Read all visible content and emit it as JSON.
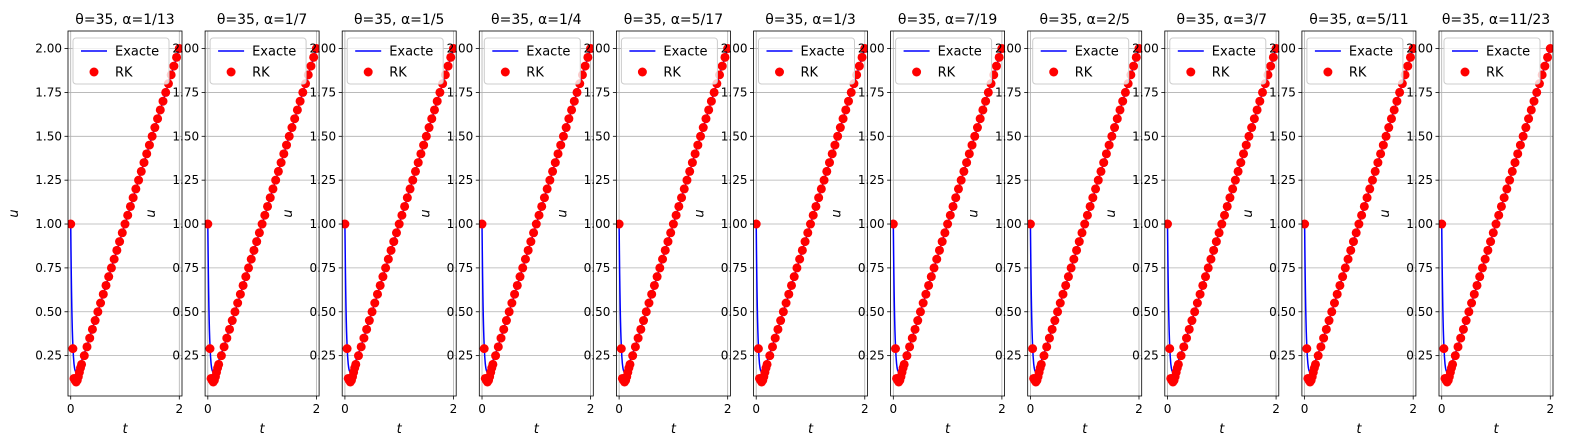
{
  "figure": {
    "colors": {
      "exact": "#0000ff",
      "rk": "#ff0000",
      "grid": "#b0b0b0",
      "legend_border": "#cccccc"
    }
  },
  "chart_data": {
    "type": "line",
    "panels": [
      {
        "title": "θ=35, α=1/13"
      },
      {
        "title": "θ=35, α=1/7"
      },
      {
        "title": "θ=35, α=1/5"
      },
      {
        "title": "θ=35, α=1/4"
      },
      {
        "title": "θ=35, α=5/17"
      },
      {
        "title": "θ=35, α=1/3"
      },
      {
        "title": "θ=35, α=7/19"
      },
      {
        "title": "θ=35, α=2/5"
      },
      {
        "title": "θ=35, α=3/7"
      },
      {
        "title": "θ=35, α=5/11"
      },
      {
        "title": "θ=35, α=11/23"
      }
    ],
    "xlabel": "t",
    "ylabel": "u",
    "xlim": [
      -0.05,
      2.05
    ],
    "ylim": [
      0.02,
      2.1
    ],
    "xticks": [
      0,
      2
    ],
    "yticks": [
      0.25,
      0.5,
      0.75,
      1.0,
      1.25,
      1.5,
      1.75,
      2.0
    ],
    "ytick_labels": [
      "0.25",
      "0.50",
      "0.75",
      "1.00",
      "1.25",
      "1.50",
      "1.75",
      "2.00"
    ],
    "grid": true,
    "legend": {
      "placement": "upper-left",
      "entries": [
        "Exacte",
        "RK"
      ]
    },
    "series": [
      {
        "name": "Exacte",
        "style": "line",
        "x": [
          0,
          0.005,
          0.01,
          0.015,
          0.02,
          0.025,
          0.03,
          0.035,
          0.04,
          0.05,
          0.06,
          0.07,
          0.08,
          0.09,
          0.1,
          0.12,
          0.14,
          0.16,
          0.18,
          0.2,
          0.25,
          0.3,
          0.4,
          0.5,
          0.6,
          0.7,
          0.8,
          0.9,
          1.0,
          1.2,
          1.4,
          1.6,
          1.8,
          2.0
        ],
        "y": [
          1.0,
          0.847,
          0.718,
          0.613,
          0.525,
          0.454,
          0.393,
          0.346,
          0.306,
          0.245,
          0.205,
          0.18,
          0.166,
          0.159,
          0.157,
          0.162,
          0.174,
          0.188,
          0.204,
          0.221,
          0.263,
          0.306,
          0.404,
          0.5,
          0.6,
          0.7,
          0.8,
          0.9,
          1.0,
          1.2,
          1.4,
          1.6,
          1.8,
          2.0
        ]
      },
      {
        "name": "RK",
        "style": "markers",
        "x": [
          0,
          0.04,
          0.06,
          0.08,
          0.1,
          0.12,
          0.14,
          0.16,
          0.18,
          0.2,
          0.25,
          0.3,
          0.35,
          0.4,
          0.45,
          0.5,
          0.55,
          0.6,
          0.65,
          0.7,
          0.75,
          0.8,
          0.85,
          0.9,
          0.95,
          1.0,
          1.05,
          1.1,
          1.15,
          1.2,
          1.25,
          1.3,
          1.35,
          1.4,
          1.45,
          1.5,
          1.55,
          1.6,
          1.65,
          1.7,
          1.75,
          1.8,
          1.85,
          1.9,
          1.95,
          2.0
        ],
        "y": [
          1.0,
          0.29,
          0.12,
          0.11,
          0.1,
          0.11,
          0.13,
          0.155,
          0.18,
          0.2,
          0.25,
          0.3,
          0.35,
          0.4,
          0.45,
          0.5,
          0.55,
          0.6,
          0.65,
          0.7,
          0.75,
          0.8,
          0.85,
          0.9,
          0.95,
          1.0,
          1.05,
          1.1,
          1.15,
          1.2,
          1.25,
          1.3,
          1.35,
          1.4,
          1.45,
          1.5,
          1.55,
          1.6,
          1.65,
          1.7,
          1.75,
          1.8,
          1.85,
          1.9,
          1.95,
          2.0
        ]
      }
    ]
  }
}
